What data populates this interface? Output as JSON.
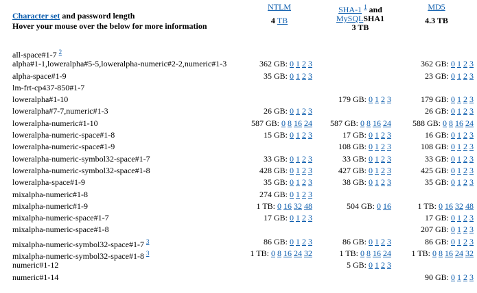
{
  "header": {
    "charset_link": "Character set",
    "title_rest": " and password length",
    "subtitle": "Hover your mouse over the below for more information",
    "ntlm": {
      "label": "NTLM",
      "size_prefix": "4 ",
      "size_link": "TB"
    },
    "sha": {
      "label1": "SHA-1",
      "sup": "1",
      "mid": " and",
      "label2": "MySQL",
      "label3": "SHA1",
      "size": "3 TB"
    },
    "md5": {
      "label": "MD5",
      "size": "4.3 TB"
    }
  },
  "rows": [
    {
      "name": "all-space#1-7",
      "sup": "2",
      "ntlm": null,
      "sha": null,
      "md5": null
    },
    {
      "name": "alpha#1-1,loweralpha#5-5,loweralpha-numeric#2-2,numeric#1-3",
      "ntlm": {
        "size": "362 GB:",
        "links": [
          "0",
          "1",
          "2",
          "3"
        ]
      },
      "sha": null,
      "md5": {
        "size": "362 GB:",
        "links": [
          "0",
          "1",
          "2",
          "3"
        ]
      }
    },
    {
      "name": "alpha-space#1-9",
      "ntlm": {
        "size": "35 GB:",
        "links": [
          "0",
          "1",
          "2",
          "3"
        ]
      },
      "sha": null,
      "md5": {
        "size": "23 GB:",
        "links": [
          "0",
          "1",
          "2",
          "3"
        ]
      }
    },
    {
      "name": "lm-frt-cp437-850#1-7",
      "ntlm": null,
      "sha": null,
      "md5": null
    },
    {
      "name": "loweralpha#1-10",
      "ntlm": null,
      "sha": {
        "size": "179 GB:",
        "links": [
          "0",
          "1",
          "2",
          "3"
        ]
      },
      "md5": {
        "size": "179 GB:",
        "links": [
          "0",
          "1",
          "2",
          "3"
        ]
      }
    },
    {
      "name": "loweralpha#7-7,numeric#1-3",
      "ntlm": {
        "size": "26 GB:",
        "links": [
          "0",
          "1",
          "2",
          "3"
        ]
      },
      "sha": null,
      "md5": {
        "size": "26 GB:",
        "links": [
          "0",
          "1",
          "2",
          "3"
        ]
      }
    },
    {
      "name": "loweralpha-numeric#1-10",
      "ntlm": {
        "size": "587 GB:",
        "links": [
          "0",
          "8",
          "16",
          "24"
        ]
      },
      "sha": {
        "size": "587 GB:",
        "links": [
          "0",
          "8",
          "16",
          "24"
        ]
      },
      "md5": {
        "size": "588 GB:",
        "links": [
          "0",
          "8",
          "16",
          "24"
        ]
      }
    },
    {
      "name": "loweralpha-numeric-space#1-8",
      "ntlm": {
        "size": "15 GB:",
        "links": [
          "0",
          "1",
          "2",
          "3"
        ]
      },
      "sha": {
        "size": "17 GB:",
        "links": [
          "0",
          "1",
          "2",
          "3"
        ]
      },
      "md5": {
        "size": "16 GB:",
        "links": [
          "0",
          "1",
          "2",
          "3"
        ]
      }
    },
    {
      "name": "loweralpha-numeric-space#1-9",
      "ntlm": null,
      "sha": {
        "size": "108 GB:",
        "links": [
          "0",
          "1",
          "2",
          "3"
        ]
      },
      "md5": {
        "size": "108 GB:",
        "links": [
          "0",
          "1",
          "2",
          "3"
        ]
      }
    },
    {
      "name": "loweralpha-numeric-symbol32-space#1-7",
      "ntlm": {
        "size": "33 GB:",
        "links": [
          "0",
          "1",
          "2",
          "3"
        ]
      },
      "sha": {
        "size": "33 GB:",
        "links": [
          "0",
          "1",
          "2",
          "3"
        ]
      },
      "md5": {
        "size": "33 GB:",
        "links": [
          "0",
          "1",
          "2",
          "3"
        ]
      }
    },
    {
      "name": "loweralpha-numeric-symbol32-space#1-8",
      "ntlm": {
        "size": "428 GB:",
        "links": [
          "0",
          "1",
          "2",
          "3"
        ]
      },
      "sha": {
        "size": "427 GB:",
        "links": [
          "0",
          "1",
          "2",
          "3"
        ]
      },
      "md5": {
        "size": "425 GB:",
        "links": [
          "0",
          "1",
          "2",
          "3"
        ]
      }
    },
    {
      "name": "loweralpha-space#1-9",
      "ntlm": {
        "size": "35 GB:",
        "links": [
          "0",
          "1",
          "2",
          "3"
        ]
      },
      "sha": {
        "size": "38 GB:",
        "links": [
          "0",
          "1",
          "2",
          "3"
        ]
      },
      "md5": {
        "size": "35 GB:",
        "links": [
          "0",
          "1",
          "2",
          "3"
        ]
      }
    },
    {
      "name": "mixalpha-numeric#1-8",
      "ntlm": {
        "size": "274 GB:",
        "links": [
          "0",
          "1",
          "2",
          "3"
        ]
      },
      "sha": null,
      "md5": null
    },
    {
      "name": "mixalpha-numeric#1-9",
      "ntlm": {
        "size": "1 TB:",
        "links": [
          "0",
          "16",
          "32",
          "48"
        ]
      },
      "sha": {
        "size": "504 GB:",
        "links": [
          "0",
          "16"
        ]
      },
      "md5": {
        "size": "1 TB:",
        "links": [
          "0",
          "16",
          "32",
          "48"
        ]
      }
    },
    {
      "name": "mixalpha-numeric-space#1-7",
      "ntlm": {
        "size": "17 GB:",
        "links": [
          "0",
          "1",
          "2",
          "3"
        ]
      },
      "sha": null,
      "md5": {
        "size": "17 GB:",
        "links": [
          "0",
          "1",
          "2",
          "3"
        ]
      }
    },
    {
      "name": "mixalpha-numeric-space#1-8",
      "ntlm": null,
      "sha": null,
      "md5": {
        "size": "207 GB:",
        "links": [
          "0",
          "1",
          "2",
          "3"
        ]
      }
    },
    {
      "name": "mixalpha-numeric-symbol32-space#1-7",
      "sup": "3",
      "ntlm": {
        "size": "86 GB:",
        "links": [
          "0",
          "1",
          "2",
          "3"
        ]
      },
      "sha": {
        "size": "86 GB:",
        "links": [
          "0",
          "1",
          "2",
          "3"
        ]
      },
      "md5": {
        "size": "86 GB:",
        "links": [
          "0",
          "1",
          "2",
          "3"
        ]
      }
    },
    {
      "name": "mixalpha-numeric-symbol32-space#1-8",
      "sup": "3",
      "ntlm": {
        "size": "1 TB:",
        "links": [
          "0",
          "8",
          "16",
          "24",
          "32"
        ]
      },
      "sha": {
        "size": "1 TB:",
        "links": [
          "0",
          "8",
          "16",
          "24"
        ]
      },
      "md5": {
        "size": "1 TB:",
        "links": [
          "0",
          "8",
          "16",
          "24",
          "32"
        ]
      }
    },
    {
      "name": "numeric#1-12",
      "ntlm": null,
      "sha": {
        "size": "5 GB:",
        "links": [
          "0",
          "1",
          "2",
          "3"
        ]
      },
      "md5": null
    },
    {
      "name": "numeric#1-14",
      "ntlm": null,
      "sha": null,
      "md5": {
        "size": "90 GB:",
        "links": [
          "0",
          "1",
          "2",
          "3"
        ]
      }
    }
  ]
}
